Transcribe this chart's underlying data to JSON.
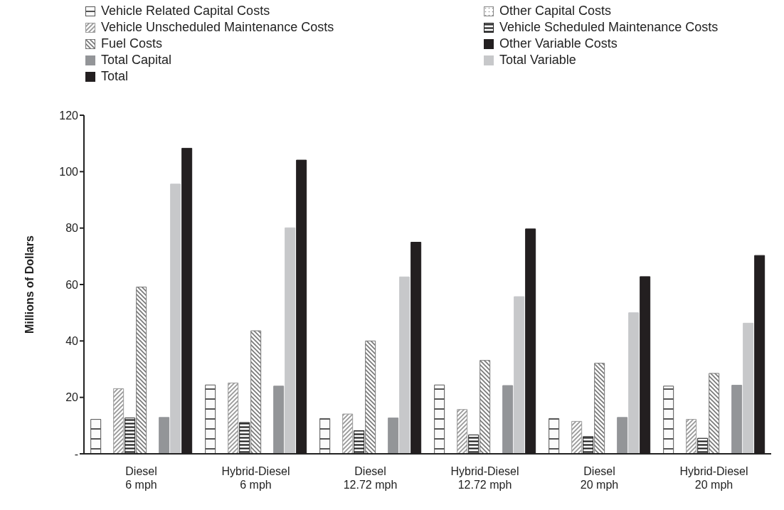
{
  "chart_data": {
    "type": "bar",
    "ylabel": "Millions of Dollars",
    "categories": [
      "Diesel\n6 mph",
      "Hybrid-Diesel\n6 mph",
      "Diesel\n12.72 mph",
      "Hybrid-Diesel\n12.72 mph",
      "Diesel\n20 mph",
      "Hybrid-Diesel\n20 mph"
    ],
    "series": [
      {
        "name": "Vehicle Related Capital Costs",
        "color": "#555555",
        "values": [
          12.2,
          24.4,
          12.5,
          24.4,
          12.5,
          24.0
        ]
      },
      {
        "name": "Other Capital Costs",
        "color": "#888888",
        "values": [
          0,
          0,
          0,
          0,
          0,
          0
        ]
      },
      {
        "name": "Vehicle Unscheduled Maintenance Costs",
        "color": "#999999",
        "values": [
          23.1,
          25.1,
          14.1,
          15.7,
          11.5,
          12.2
        ]
      },
      {
        "name": "Vehicle Scheduled Maintenance Costs",
        "color": "#222222",
        "values": [
          12.7,
          11.1,
          8.2,
          6.7,
          6.1,
          5.5
        ]
      },
      {
        "name": "Fuel Costs",
        "color": "#777777",
        "values": [
          59.1,
          43.6,
          40.0,
          33.1,
          32.1,
          28.5
        ]
      },
      {
        "name": "Other Variable Costs",
        "color": "#231f20",
        "values": [
          0,
          0,
          0,
          0,
          0,
          0
        ]
      },
      {
        "name": "Total Capital",
        "color": "#939598",
        "values": [
          12.9,
          24.0,
          12.7,
          24.2,
          12.9,
          24.3
        ]
      },
      {
        "name": "Total Variable",
        "color": "#c7c8ca",
        "values": [
          95.6,
          80.1,
          62.7,
          55.7,
          50.0,
          46.3
        ]
      },
      {
        "name": "Total",
        "color": "#231f20",
        "values": [
          108.3,
          104.1,
          75.0,
          79.7,
          62.8,
          70.3
        ]
      }
    ],
    "ylim": [
      0,
      120
    ],
    "yticks": [
      {
        "value": 0,
        "label": "-"
      },
      20,
      40,
      60,
      80,
      100,
      120
    ],
    "grid": false,
    "legend": "top"
  }
}
